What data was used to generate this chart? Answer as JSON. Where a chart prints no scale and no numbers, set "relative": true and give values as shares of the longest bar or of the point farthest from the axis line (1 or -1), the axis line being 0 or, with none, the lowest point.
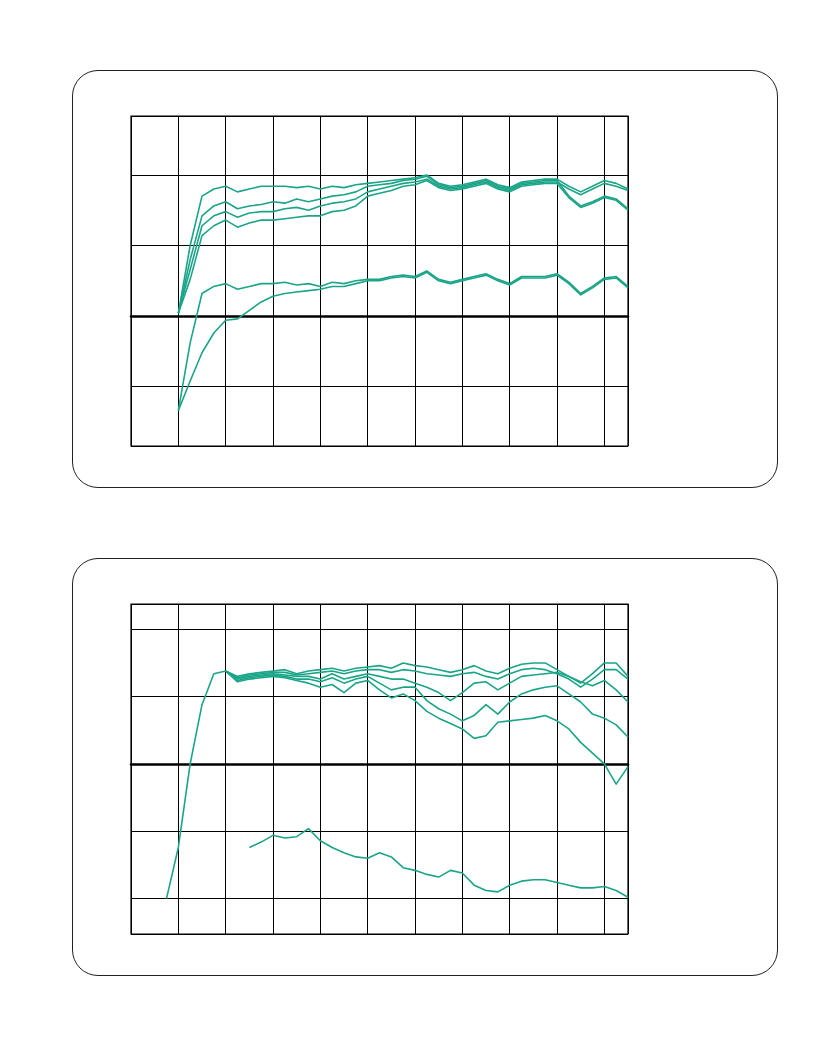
{
  "chart_data": [
    {
      "type": "line",
      "relative": true,
      "grid": true,
      "marker": "none",
      "categories": [
        null,
        null,
        null,
        null,
        null,
        null,
        null,
        null,
        null,
        null,
        null,
        null,
        null,
        null,
        null,
        null,
        null,
        null,
        null,
        null,
        null,
        null,
        null,
        null,
        null,
        null,
        null,
        null,
        null,
        null,
        null,
        null,
        null,
        null,
        null,
        null,
        null,
        null,
        null,
        null,
        null,
        null,
        null
      ],
      "series": [
        {
          "color": "#1ba588",
          "values": [
            null,
            null,
            null,
            null,
            0.02,
            0.5,
            0.85,
            0.9,
            0.92,
            0.88,
            0.9,
            0.92,
            0.92,
            0.92,
            0.91,
            0.92,
            0.9,
            0.92,
            0.91,
            0.93,
            0.94,
            0.95,
            0.96,
            0.97,
            0.98,
            1.0,
            0.94,
            0.92,
            0.93,
            0.95,
            0.97,
            0.93,
            0.91,
            0.95,
            0.96,
            0.97,
            0.97,
            0.92,
            0.88,
            0.92,
            0.96,
            0.94,
            0.9
          ]
        },
        {
          "color": "#1ba588",
          "values": [
            null,
            null,
            null,
            null,
            0.02,
            0.4,
            0.71,
            0.78,
            0.81,
            0.76,
            0.78,
            0.79,
            0.81,
            0.8,
            0.83,
            0.81,
            0.83,
            0.85,
            0.86,
            0.88,
            0.92,
            0.93,
            0.94,
            0.96,
            0.97,
            0.99,
            0.93,
            0.91,
            0.92,
            0.94,
            0.96,
            0.92,
            0.9,
            0.94,
            0.95,
            0.96,
            0.96,
            0.85,
            0.78,
            0.81,
            0.85,
            0.83,
            0.76
          ]
        },
        {
          "color": "#1ba588",
          "values": [
            null,
            null,
            null,
            null,
            0.02,
            0.33,
            0.64,
            0.71,
            0.74,
            0.7,
            0.73,
            0.74,
            0.74,
            0.76,
            0.77,
            0.75,
            0.78,
            0.8,
            0.81,
            0.83,
            0.88,
            0.9,
            0.92,
            0.94,
            0.95,
            0.97,
            0.92,
            0.9,
            0.91,
            0.93,
            0.95,
            0.91,
            0.89,
            0.93,
            0.94,
            0.95,
            0.95,
            0.9,
            0.86,
            0.9,
            0.94,
            0.92,
            0.89
          ]
        },
        {
          "color": "#1ba588",
          "values": [
            null,
            null,
            null,
            null,
            0.02,
            0.26,
            0.57,
            0.64,
            0.68,
            0.63,
            0.66,
            0.68,
            0.68,
            0.69,
            0.7,
            0.71,
            0.71,
            0.74,
            0.75,
            0.78,
            0.85,
            0.87,
            0.89,
            0.92,
            0.93,
            0.96,
            0.91,
            0.89,
            0.9,
            0.92,
            0.94,
            0.9,
            0.88,
            0.92,
            0.93,
            0.94,
            0.94,
            0.84,
            0.77,
            0.8,
            0.84,
            0.82,
            0.75
          ]
        },
        {
          "color": "#1ba588",
          "values": [
            null,
            null,
            null,
            null,
            -0.67,
            -0.19,
            0.16,
            0.21,
            0.23,
            0.19,
            0.21,
            0.23,
            0.23,
            0.24,
            0.22,
            0.23,
            0.21,
            0.24,
            0.23,
            0.25,
            0.26,
            0.26,
            0.28,
            0.29,
            0.28,
            0.32,
            0.26,
            0.24,
            0.26,
            0.28,
            0.3,
            0.26,
            0.23,
            0.28,
            0.28,
            0.28,
            0.3,
            0.24,
            0.16,
            0.21,
            0.27,
            0.28,
            0.21
          ]
        },
        {
          "color": "#1ba588",
          "values": [
            null,
            null,
            null,
            null,
            -0.67,
            -0.46,
            -0.26,
            -0.12,
            -0.03,
            -0.02,
            0.04,
            0.1,
            0.14,
            0.16,
            0.17,
            0.18,
            0.19,
            0.21,
            0.21,
            0.23,
            0.25,
            0.25,
            0.27,
            0.28,
            0.27,
            0.31,
            0.25,
            0.23,
            0.25,
            0.27,
            0.29,
            0.25,
            0.22,
            0.27,
            0.27,
            0.27,
            0.29,
            0.23,
            0.15,
            0.2,
            0.26,
            0.27,
            0.2
          ]
        }
      ]
    },
    {
      "type": "line",
      "relative": true,
      "grid": true,
      "marker": "none",
      "categories": [
        null,
        null,
        null,
        null,
        null,
        null,
        null,
        null,
        null,
        null,
        null,
        null,
        null,
        null,
        null,
        null,
        null,
        null,
        null,
        null,
        null,
        null,
        null,
        null,
        null,
        null,
        null,
        null,
        null,
        null,
        null,
        null,
        null,
        null,
        null,
        null,
        null,
        null,
        null,
        null,
        null,
        null,
        null
      ],
      "series": [
        {
          "color": "#1ba588",
          "values": [
            null,
            null,
            null,
            -1.0,
            -0.62,
            0.0,
            0.44,
            0.67,
            0.69,
            0.65,
            0.67,
            0.68,
            0.69,
            0.7,
            0.67,
            0.69,
            0.7,
            0.71,
            0.69,
            0.71,
            0.72,
            0.73,
            0.71,
            0.75,
            0.73,
            0.72,
            0.7,
            0.68,
            0.7,
            0.73,
            0.69,
            0.67,
            0.71,
            0.74,
            0.75,
            0.75,
            0.7,
            0.65,
            0.6,
            0.67,
            0.75,
            0.75,
            0.65
          ]
        },
        {
          "color": "#1ba588",
          "values": [
            null,
            null,
            null,
            null,
            null,
            null,
            null,
            null,
            0.69,
            0.64,
            0.66,
            0.67,
            0.68,
            0.68,
            0.66,
            0.67,
            0.68,
            0.69,
            0.67,
            0.69,
            0.7,
            0.7,
            0.68,
            0.7,
            0.69,
            0.67,
            0.66,
            0.65,
            0.67,
            0.68,
            0.65,
            0.63,
            0.67,
            0.7,
            0.71,
            0.7,
            0.67,
            0.63,
            0.57,
            0.63,
            0.7,
            0.7,
            0.63
          ]
        },
        {
          "color": "#1ba588",
          "values": [
            null,
            null,
            null,
            null,
            null,
            null,
            null,
            null,
            0.69,
            0.63,
            0.65,
            0.66,
            0.67,
            0.66,
            0.65,
            0.65,
            0.63,
            0.67,
            0.63,
            0.65,
            0.67,
            0.65,
            0.63,
            0.63,
            0.6,
            0.57,
            0.53,
            0.47,
            0.53,
            0.6,
            0.61,
            0.55,
            0.6,
            0.65,
            0.66,
            0.67,
            0.68,
            0.65,
            0.61,
            0.58,
            0.62,
            0.55,
            0.46
          ]
        },
        {
          "color": "#1ba588",
          "values": [
            null,
            null,
            null,
            null,
            null,
            null,
            null,
            null,
            0.69,
            0.62,
            0.64,
            0.65,
            0.66,
            0.65,
            0.63,
            0.63,
            0.61,
            0.64,
            0.6,
            0.63,
            0.65,
            0.6,
            0.55,
            0.57,
            0.57,
            0.47,
            0.41,
            0.37,
            0.32,
            0.36,
            0.44,
            0.37,
            0.46,
            0.52,
            0.55,
            0.57,
            0.58,
            0.52,
            0.46,
            0.37,
            0.34,
            0.29,
            0.2
          ]
        },
        {
          "color": "#1ba588",
          "values": [
            null,
            null,
            null,
            null,
            null,
            null,
            null,
            null,
            0.69,
            0.61,
            0.63,
            0.64,
            0.65,
            0.64,
            0.62,
            0.6,
            0.57,
            0.59,
            0.53,
            0.6,
            0.62,
            0.55,
            0.49,
            0.52,
            0.47,
            0.39,
            0.34,
            0.3,
            0.26,
            0.19,
            0.21,
            0.31,
            0.32,
            0.33,
            0.34,
            0.36,
            0.32,
            0.26,
            0.16,
            0.08,
            0.0,
            -0.15,
            -0.02
          ]
        },
        {
          "color": "#1ba588",
          "values": [
            null,
            null,
            null,
            null,
            null,
            null,
            null,
            null,
            null,
            null,
            -0.62,
            -0.58,
            -0.53,
            -0.55,
            -0.54,
            -0.48,
            -0.57,
            -0.62,
            -0.66,
            -0.69,
            -0.7,
            -0.66,
            -0.69,
            -0.77,
            -0.79,
            -0.82,
            -0.84,
            -0.79,
            -0.81,
            -0.9,
            -0.94,
            -0.95,
            -0.9,
            -0.87,
            -0.86,
            -0.86,
            -0.88,
            -0.9,
            -0.92,
            -0.92,
            -0.91,
            -0.94,
            -0.99
          ]
        }
      ]
    }
  ]
}
